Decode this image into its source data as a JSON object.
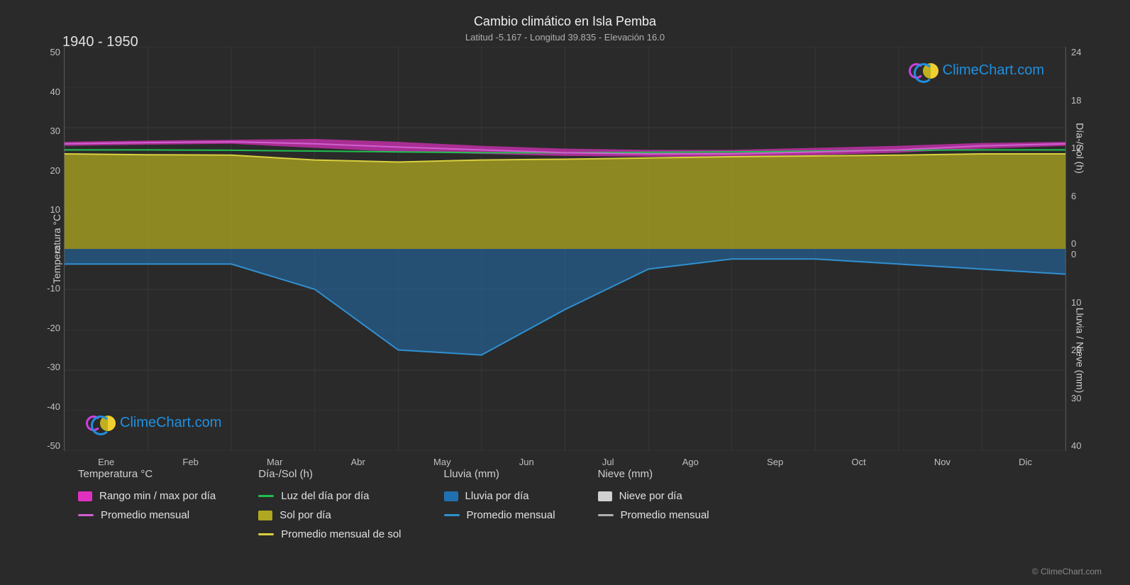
{
  "title": "Cambio climático en Isla Pemba",
  "subtitle": "Latitud -5.167 - Longitud 39.835 - Elevación 16.0",
  "period": "1940 - 1950",
  "watermark": "ClimeChart.com",
  "copyright": "© ClimeChart.com",
  "axes": {
    "left_label": "Temperatura °C",
    "right_top_label": "Día-/Sol (h)",
    "right_bottom_label": "Lluvia / Nieve (mm)",
    "left_ticks": [
      "50",
      "40",
      "30",
      "20",
      "10",
      "0",
      "-10",
      "-20",
      "-30",
      "-40",
      "-50"
    ],
    "right_top_ticks": [
      "24",
      "18",
      "12",
      "6",
      "0"
    ],
    "right_bottom_ticks": [
      "0",
      "10",
      "20",
      "30",
      "40"
    ],
    "left_min": -50,
    "left_max": 50,
    "months": [
      "Ene",
      "Feb",
      "Mar",
      "Abr",
      "May",
      "Jun",
      "Jul",
      "Ago",
      "Sep",
      "Oct",
      "Nov",
      "Dic"
    ]
  },
  "style": {
    "bg": "#2a2a2a",
    "grid_color": "#505050",
    "grid_color_minor": "#3a3a3a",
    "text_color": "#e0e0e0",
    "title_fontsize": 18,
    "subtitle_fontsize": 13,
    "tick_fontsize": 13
  },
  "colors": {
    "temp_range": "#e030c0",
    "temp_avg": "#d060d0",
    "daylight": "#20c050",
    "sun_fill": "#b0a820",
    "sun_avg": "#d8d040",
    "rain_fill": "#2070b0",
    "rain_avg": "#3090d0",
    "snow_fill": "#d0d0d0",
    "snow_avg": "#b0b0b0"
  },
  "series": {
    "temp_max": [
      26.5,
      26.8,
      27.0,
      27.2,
      26.5,
      25.5,
      24.8,
      24.5,
      24.5,
      25.0,
      25.5,
      26.2,
      26.5
    ],
    "temp_min": [
      25.5,
      25.8,
      26.0,
      25.0,
      24.0,
      23.5,
      23.0,
      22.8,
      22.8,
      23.2,
      23.8,
      24.8,
      25.5
    ],
    "temp_avg": [
      26.0,
      26.3,
      26.5,
      26.0,
      25.2,
      24.5,
      23.8,
      23.5,
      23.5,
      24.0,
      24.5,
      25.5,
      26.0
    ],
    "daylight": [
      24.5,
      24.5,
      24.4,
      24.2,
      24.0,
      23.8,
      23.8,
      23.9,
      24.0,
      24.2,
      24.4,
      24.5,
      24.5
    ],
    "sun_hours": [
      23.5,
      23.3,
      23.2,
      22.0,
      21.5,
      22.0,
      22.2,
      22.5,
      22.8,
      23.0,
      23.2,
      23.5,
      23.5
    ],
    "rain_mm": [
      3,
      3,
      3,
      8,
      20,
      21,
      12,
      4,
      2,
      2,
      3,
      4,
      5
    ],
    "snow_mm": [
      0,
      0,
      0,
      0,
      0,
      0,
      0,
      0,
      0,
      0,
      0,
      0,
      0
    ]
  },
  "legend": {
    "groups": [
      {
        "header": "Temperatura °C",
        "items": [
          {
            "type": "swatch",
            "color": "#e030c0",
            "label": "Rango min / max por día"
          },
          {
            "type": "line",
            "color": "#d060d0",
            "label": "Promedio mensual"
          }
        ]
      },
      {
        "header": "Día-/Sol (h)",
        "items": [
          {
            "type": "line",
            "color": "#20c050",
            "label": "Luz del día por día"
          },
          {
            "type": "swatch",
            "color": "#b0a820",
            "label": "Sol por día"
          },
          {
            "type": "line",
            "color": "#d8d040",
            "label": "Promedio mensual de sol"
          }
        ]
      },
      {
        "header": "Lluvia (mm)",
        "items": [
          {
            "type": "swatch",
            "color": "#2070b0",
            "label": "Lluvia por día"
          },
          {
            "type": "line",
            "color": "#3090d0",
            "label": "Promedio mensual"
          }
        ]
      },
      {
        "header": "Nieve (mm)",
        "items": [
          {
            "type": "swatch",
            "color": "#d0d0d0",
            "label": "Nieve por día"
          },
          {
            "type": "line",
            "color": "#b0b0b0",
            "label": "Promedio mensual"
          }
        ]
      }
    ]
  }
}
